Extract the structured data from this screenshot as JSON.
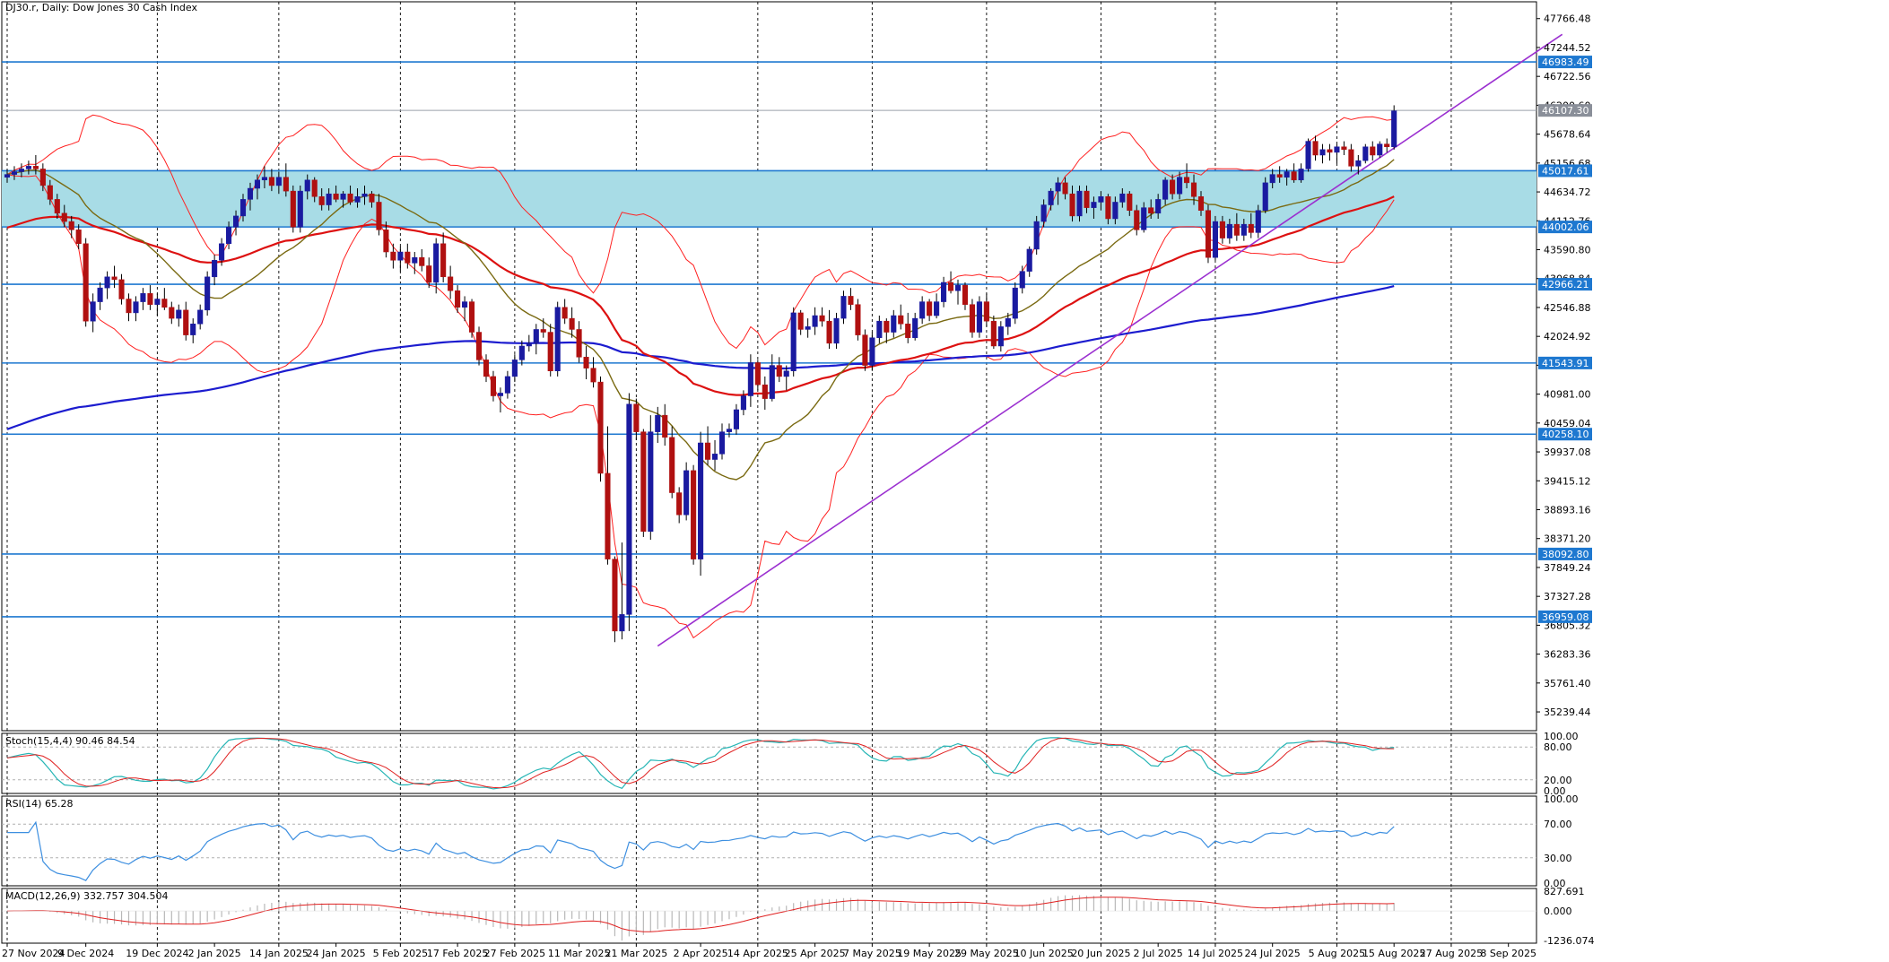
{
  "chart_data": {
    "type": "candlestick",
    "title": "DJ30.r, Daily:  Dow Jones 30 Cash Index",
    "x_labels": [
      "27 Nov 2024",
      "9 Dec 2024",
      "19 Dec 2024",
      "2 Jan 2025",
      "14 Jan 2025",
      "24 Jan 2025",
      "5 Feb 2025",
      "17 Feb 2025",
      "27 Feb 2025",
      "11 Mar 2025",
      "21 Mar 2025",
      "2 Apr 2025",
      "14 Apr 2025",
      "25 Apr 2025",
      "7 May 2025",
      "19 May 2025",
      "29 May 2025",
      "10 Jun 2025",
      "20 Jun 2025",
      "2 Jul 2025",
      "14 Jul 2025",
      "24 Jul 2025",
      "5 Aug 2025",
      "15 Aug 2025",
      "27 Aug 2025",
      "8 Sep 2025"
    ],
    "price_axis": {
      "ticks": [
        "47766.48",
        "47244.52",
        "46722.56",
        "46200.60",
        "45678.64",
        "45156.68",
        "44634.72",
        "44112.76",
        "43590.80",
        "43068.84",
        "42546.88",
        "42024.92",
        "41502.96",
        "40981.00",
        "40459.04",
        "39937.08",
        "39415.12",
        "38893.16",
        "38371.20",
        "37849.24",
        "37327.28",
        "36805.32",
        "36283.36",
        "35761.40",
        "35239.44"
      ],
      "range": [
        34900,
        48070
      ]
    },
    "horizontal_levels": [
      "46983.49",
      "46107.30",
      "45017.61",
      "44002.06",
      "42966.21",
      "41543.91",
      "40258.10",
      "38092.80",
      "36959.08"
    ],
    "last_price": "46107.30",
    "zone": [
      "44002.06",
      "45017.61"
    ],
    "trendline": {
      "from": [
        "2 Apr 2025",
        36430
      ],
      "to": [
        "8 Sep 2025",
        46640
      ]
    },
    "stochastic": {
      "label": "Stoch(15,4,4) 90.46 84.54",
      "ticks": [
        "100.00",
        "80.00",
        "20.00",
        "0.00"
      ]
    },
    "rsi": {
      "label": "RSI(14) 65.28",
      "ticks": [
        "100.00",
        "70.00",
        "30.00",
        "0.00"
      ]
    },
    "macd": {
      "label": "MACD(12,26,9) 332.757 304.504",
      "ticks": [
        "827.691",
        "0.000",
        "-1236.074"
      ]
    },
    "candles": [
      [
        44900,
        45050,
        44800,
        44950
      ],
      [
        44950,
        45100,
        44850,
        45000
      ],
      [
        45000,
        45150,
        44900,
        45050
      ],
      [
        45050,
        45200,
        44950,
        45100
      ],
      [
        45100,
        45300,
        44950,
        45050
      ],
      [
        45050,
        45150,
        44650,
        44750
      ],
      [
        44750,
        44850,
        44400,
        44500
      ],
      [
        44500,
        44600,
        44150,
        44250
      ],
      [
        44250,
        44400,
        44000,
        44100
      ],
      [
        44100,
        44200,
        43800,
        43950
      ],
      [
        43950,
        44050,
        43600,
        43700
      ],
      [
        43700,
        43800,
        42200,
        42300
      ],
      [
        42300,
        42800,
        42100,
        42650
      ],
      [
        42650,
        43000,
        42500,
        42900
      ],
      [
        42900,
        43200,
        42700,
        43100
      ],
      [
        43100,
        43300,
        42900,
        43050
      ],
      [
        43050,
        43150,
        42600,
        42700
      ],
      [
        42700,
        42800,
        42300,
        42450
      ],
      [
        42450,
        42750,
        42300,
        42650
      ],
      [
        42650,
        42900,
        42500,
        42800
      ],
      [
        42800,
        42950,
        42500,
        42600
      ],
      [
        42600,
        42800,
        42400,
        42700
      ],
      [
        42700,
        42900,
        42500,
        42550
      ],
      [
        42550,
        42650,
        42250,
        42350
      ],
      [
        42350,
        42600,
        42200,
        42500
      ],
      [
        42500,
        42650,
        41950,
        42050
      ],
      [
        42050,
        42350,
        41900,
        42250
      ],
      [
        42250,
        42600,
        42150,
        42500
      ],
      [
        42500,
        43200,
        42400,
        43100
      ],
      [
        43100,
        43500,
        42950,
        43400
      ],
      [
        43400,
        43800,
        43300,
        43700
      ],
      [
        43700,
        44100,
        43600,
        44000
      ],
      [
        44000,
        44300,
        43850,
        44200
      ],
      [
        44200,
        44600,
        44100,
        44500
      ],
      [
        44500,
        44800,
        44300,
        44700
      ],
      [
        44700,
        44950,
        44500,
        44850
      ],
      [
        44850,
        45100,
        44700,
        44900
      ],
      [
        44900,
        45050,
        44650,
        44750
      ],
      [
        44750,
        45000,
        44600,
        44900
      ],
      [
        44900,
        45150,
        44550,
        44650
      ],
      [
        44650,
        44750,
        43900,
        44000
      ],
      [
        44000,
        44750,
        43900,
        44650
      ],
      [
        44650,
        44950,
        44500,
        44850
      ],
      [
        44850,
        44900,
        44450,
        44550
      ],
      [
        44550,
        44700,
        44300,
        44400
      ],
      [
        44400,
        44700,
        44300,
        44600
      ],
      [
        44600,
        44750,
        44450,
        44500
      ],
      [
        44500,
        44650,
        44350,
        44600
      ],
      [
        44600,
        44750,
        44400,
        44450
      ],
      [
        44450,
        44700,
        44350,
        44550
      ],
      [
        44550,
        44750,
        44400,
        44600
      ],
      [
        44600,
        44650,
        44350,
        44450
      ],
      [
        44450,
        44600,
        43850,
        43950
      ],
      [
        43950,
        44100,
        43450,
        43550
      ],
      [
        43550,
        43700,
        43250,
        43400
      ],
      [
        43400,
        43650,
        43200,
        43550
      ],
      [
        43550,
        43700,
        43250,
        43350
      ],
      [
        43350,
        43550,
        43150,
        43450
      ],
      [
        43450,
        43600,
        43200,
        43300
      ],
      [
        43300,
        43450,
        42900,
        43000
      ],
      [
        43000,
        43800,
        42800,
        43700
      ],
      [
        43700,
        43900,
        43000,
        43100
      ],
      [
        43100,
        43300,
        42700,
        42850
      ],
      [
        42850,
        42950,
        42450,
        42550
      ],
      [
        42550,
        42750,
        42300,
        42650
      ],
      [
        42650,
        42700,
        42000,
        42100
      ],
      [
        42100,
        42200,
        41500,
        41600
      ],
      [
        41600,
        41700,
        41200,
        41300
      ],
      [
        41300,
        41400,
        40850,
        40950
      ],
      [
        40950,
        41100,
        40650,
        41000
      ],
      [
        41000,
        41400,
        40900,
        41300
      ],
      [
        41300,
        41700,
        41200,
        41600
      ],
      [
        41600,
        41950,
        41500,
        41850
      ],
      [
        41850,
        42050,
        41750,
        41900
      ],
      [
        41900,
        42250,
        41700,
        42150
      ],
      [
        42150,
        42350,
        42000,
        42100
      ],
      [
        42100,
        42250,
        41300,
        41400
      ],
      [
        41400,
        42650,
        41300,
        42550
      ],
      [
        42550,
        42700,
        42250,
        42350
      ],
      [
        42350,
        42550,
        42000,
        42150
      ],
      [
        42150,
        42300,
        41550,
        41650
      ],
      [
        41650,
        41850,
        41250,
        41450
      ],
      [
        41450,
        41650,
        41100,
        41200
      ],
      [
        41200,
        41300,
        39400,
        39550
      ],
      [
        39550,
        40400,
        37900,
        38000
      ],
      [
        38000,
        38050,
        36500,
        36700
      ],
      [
        36700,
        38300,
        36550,
        37000
      ],
      [
        37000,
        41000,
        36700,
        40800
      ],
      [
        40800,
        40900,
        40150,
        40300
      ],
      [
        40300,
        40350,
        38400,
        38500
      ],
      [
        38500,
        40600,
        38350,
        40300
      ],
      [
        40300,
        40750,
        40100,
        40600
      ],
      [
        40600,
        40800,
        40050,
        40200
      ],
      [
        40200,
        40400,
        39100,
        39200
      ],
      [
        39200,
        39300,
        38650,
        38800
      ],
      [
        38800,
        39750,
        38700,
        39600
      ],
      [
        39600,
        39700,
        37900,
        38000
      ],
      [
        38000,
        40300,
        37700,
        40100
      ],
      [
        40100,
        40400,
        39700,
        39800
      ],
      [
        39800,
        40150,
        39600,
        39900
      ],
      [
        39900,
        40450,
        39800,
        40300
      ],
      [
        40300,
        40450,
        40200,
        40350
      ],
      [
        40350,
        40800,
        40250,
        40700
      ],
      [
        40700,
        41050,
        40600,
        40950
      ],
      [
        40950,
        41700,
        40750,
        41550
      ],
      [
        41550,
        41600,
        41050,
        41150
      ],
      [
        41150,
        41300,
        40700,
        40900
      ],
      [
        40900,
        41700,
        40850,
        41500
      ],
      [
        41500,
        41650,
        41200,
        41300
      ],
      [
        41300,
        41500,
        41050,
        41400
      ],
      [
        41400,
        42550,
        41300,
        42450
      ],
      [
        42450,
        42500,
        42050,
        42150
      ],
      [
        42150,
        42350,
        42000,
        42200
      ],
      [
        42200,
        42550,
        42050,
        42400
      ],
      [
        42400,
        42550,
        42200,
        42300
      ],
      [
        42300,
        42500,
        41800,
        41900
      ],
      [
        41900,
        42450,
        41800,
        42350
      ],
      [
        42350,
        42850,
        42250,
        42750
      ],
      [
        42750,
        42900,
        42500,
        42600
      ],
      [
        42600,
        42700,
        41950,
        42050
      ],
      [
        42050,
        42150,
        41400,
        41500
      ],
      [
        41500,
        42100,
        41400,
        42000
      ],
      [
        42000,
        42400,
        41900,
        42300
      ],
      [
        42300,
        42350,
        41900,
        42100
      ],
      [
        42100,
        42500,
        42000,
        42400
      ],
      [
        42400,
        42600,
        42150,
        42250
      ],
      [
        42250,
        42450,
        41900,
        42000
      ],
      [
        42000,
        42450,
        41950,
        42350
      ],
      [
        42350,
        42750,
        42250,
        42650
      ],
      [
        42650,
        42700,
        42300,
        42400
      ],
      [
        42400,
        42800,
        42350,
        42650
      ],
      [
        42650,
        43100,
        42550,
        43000
      ],
      [
        43000,
        43200,
        42800,
        42850
      ],
      [
        42850,
        43050,
        42600,
        42950
      ],
      [
        42950,
        43000,
        42500,
        42600
      ],
      [
        42600,
        42700,
        42000,
        42100
      ],
      [
        42100,
        42750,
        42000,
        42650
      ],
      [
        42650,
        42800,
        42200,
        42300
      ],
      [
        42300,
        42400,
        41800,
        41850
      ],
      [
        41850,
        42300,
        41750,
        42200
      ],
      [
        42200,
        42450,
        42050,
        42350
      ],
      [
        42350,
        43000,
        42250,
        42900
      ],
      [
        42900,
        43300,
        42800,
        43200
      ],
      [
        43200,
        43650,
        43100,
        43600
      ],
      [
        43600,
        44200,
        43500,
        44100
      ],
      [
        44100,
        44500,
        44000,
        44400
      ],
      [
        44400,
        44700,
        44300,
        44650
      ],
      [
        44650,
        44900,
        44400,
        44800
      ],
      [
        44800,
        44900,
        44500,
        44600
      ],
      [
        44600,
        44750,
        44100,
        44200
      ],
      [
        44200,
        44750,
        44100,
        44650
      ],
      [
        44650,
        44750,
        44250,
        44350
      ],
      [
        44350,
        44550,
        44150,
        44450
      ],
      [
        44450,
        44650,
        44300,
        44550
      ],
      [
        44550,
        44600,
        44050,
        44150
      ],
      [
        44150,
        44550,
        44050,
        44450
      ],
      [
        44450,
        44700,
        44350,
        44600
      ],
      [
        44600,
        44650,
        44200,
        44300
      ],
      [
        44300,
        44400,
        43850,
        43950
      ],
      [
        43950,
        44450,
        43900,
        44350
      ],
      [
        44350,
        44500,
        44150,
        44250
      ],
      [
        44250,
        44600,
        44150,
        44500
      ],
      [
        44500,
        44900,
        44400,
        44850
      ],
      [
        44850,
        44950,
        44500,
        44600
      ],
      [
        44600,
        45000,
        44500,
        44900
      ],
      [
        44900,
        45150,
        44700,
        44800
      ],
      [
        44800,
        44950,
        44400,
        44550
      ],
      [
        44550,
        44650,
        44200,
        44300
      ],
      [
        44300,
        44400,
        43350,
        43450
      ],
      [
        43450,
        44200,
        43400,
        44100
      ],
      [
        44100,
        44200,
        43700,
        43800
      ],
      [
        43800,
        44150,
        43700,
        44050
      ],
      [
        44050,
        44250,
        43750,
        43850
      ],
      [
        43850,
        44150,
        43750,
        44050
      ],
      [
        44050,
        44250,
        43800,
        43900
      ],
      [
        43900,
        44400,
        43800,
        44300
      ],
      [
        44300,
        44900,
        44250,
        44800
      ],
      [
        44800,
        45050,
        44700,
        44950
      ],
      [
        44950,
        45100,
        44800,
        44900
      ],
      [
        44900,
        45050,
        44750,
        45000
      ],
      [
        45000,
        45150,
        44800,
        44850
      ],
      [
        44850,
        45150,
        44800,
        45050
      ],
      [
        45050,
        45600,
        45000,
        45550
      ],
      [
        45550,
        45650,
        45200,
        45300
      ],
      [
        45300,
        45500,
        45150,
        45400
      ],
      [
        45400,
        45500,
        45200,
        45350
      ],
      [
        45350,
        45500,
        45150,
        45450
      ],
      [
        45450,
        45550,
        45300,
        45400
      ],
      [
        45400,
        45500,
        45000,
        45100
      ],
      [
        45100,
        45300,
        44950,
        45200
      ],
      [
        45200,
        45500,
        45150,
        45450
      ],
      [
        45450,
        45550,
        45200,
        45300
      ],
      [
        45300,
        45550,
        45250,
        45500
      ],
      [
        45500,
        45600,
        45350,
        45450
      ],
      [
        45450,
        46200,
        45400,
        46100
      ]
    ]
  }
}
